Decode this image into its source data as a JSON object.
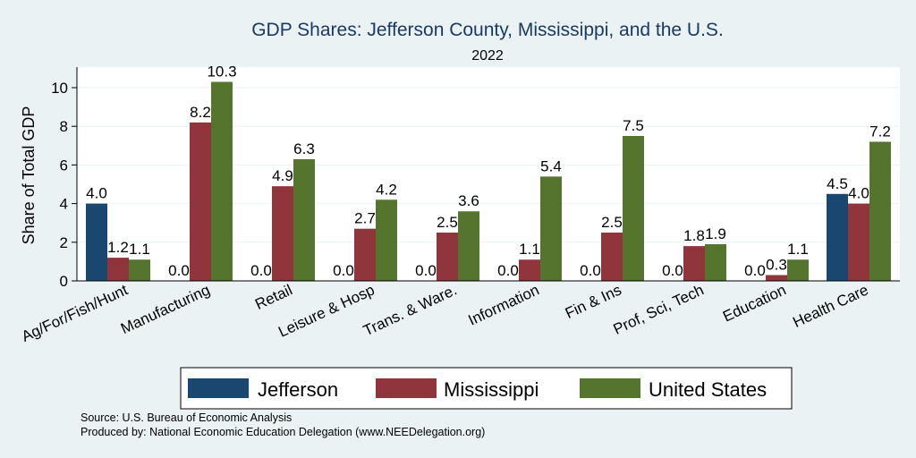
{
  "colors": {
    "background": "#eaf2f3",
    "plot_background": "#ffffff",
    "jefferson": "#1a476f",
    "mississippi": "#90353b",
    "united_states": "#55752f"
  },
  "chart_data": {
    "type": "bar",
    "title": "GDP Shares: Jefferson County, Mississippi, and the U.S.",
    "subtitle": "2022",
    "xlabel": "",
    "ylabel": "Share of Total GDP",
    "ylim": [
      0,
      11
    ],
    "yticks": [
      0,
      2,
      4,
      6,
      8,
      10
    ],
    "grid": true,
    "legend_position": "bottom",
    "categories": [
      "Ag/For/Fish/Hunt",
      "Manufacturing",
      "Retail",
      "Leisure & Hosp",
      "Trans. & Ware.",
      "Information",
      "Fin & Ins",
      "Prof, Sci, Tech",
      "Education",
      "Health Care"
    ],
    "series": [
      {
        "name": "Jefferson",
        "values": [
          4.0,
          0.0,
          0.0,
          0.0,
          0.0,
          0.0,
          0.0,
          0.0,
          0.0,
          4.5
        ]
      },
      {
        "name": "Mississippi",
        "values": [
          1.2,
          8.2,
          4.9,
          2.7,
          2.5,
          1.1,
          2.5,
          1.8,
          0.3,
          4.0
        ]
      },
      {
        "name": "United States",
        "values": [
          1.1,
          10.3,
          6.3,
          4.2,
          3.6,
          5.4,
          7.5,
          1.9,
          1.1,
          7.2
        ]
      }
    ]
  },
  "notes": {
    "source": "Source: U.S. Bureau of Economic Analysis",
    "produced_by": "Produced by: National Economic Education Delegation (www.NEEDelegation.org)"
  }
}
